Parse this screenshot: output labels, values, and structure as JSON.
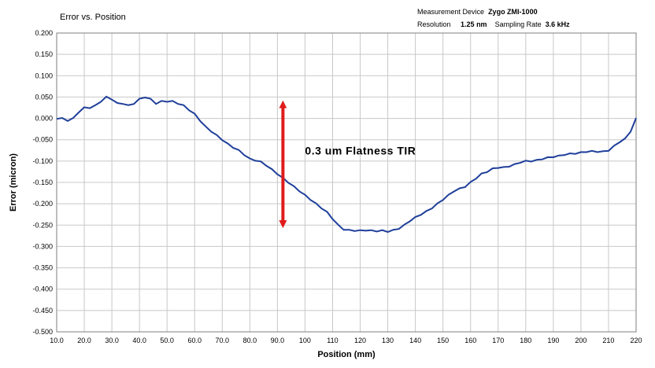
{
  "chart_data": {
    "type": "line",
    "title": "Error vs. Position",
    "xlabel": "Position (mm)",
    "ylabel": "Error (micron)",
    "xlim": [
      10,
      220
    ],
    "ylim": [
      -0.5,
      0.2
    ],
    "x_ticks": [
      "10.0",
      "20.0",
      "30.0",
      "40.0",
      "50.0",
      "60.0",
      "70.0",
      "80.0",
      "90.0",
      "100",
      "110",
      "120",
      "130",
      "140",
      "150",
      "160",
      "170",
      "180",
      "190",
      "200",
      "210",
      "220"
    ],
    "y_ticks": [
      "0.200",
      "0.150",
      "0.100",
      "0.050",
      "0.000",
      "-0.050",
      "-0.100",
      "-0.150",
      "-0.200",
      "-0.250",
      "-0.300",
      "-0.350",
      "-0.400",
      "-0.450",
      "-0.500"
    ],
    "grid": true,
    "series": [
      {
        "color": "#1f3f9a",
        "x": [
          10,
          12,
          14,
          16,
          18,
          20,
          22,
          24,
          26,
          28,
          30,
          32,
          34,
          36,
          38,
          40,
          42,
          44,
          46,
          48,
          50,
          52,
          54,
          56,
          58,
          60,
          62,
          64,
          66,
          68,
          70,
          72,
          74,
          76,
          78,
          80,
          82,
          84,
          86,
          88,
          90,
          92,
          94,
          96,
          98,
          100,
          102,
          104,
          106,
          108,
          110,
          112,
          114,
          116,
          118,
          120,
          122,
          124,
          126,
          128,
          130,
          132,
          134,
          136,
          138,
          140,
          142,
          144,
          146,
          148,
          150,
          152,
          154,
          156,
          158,
          160,
          162,
          164,
          166,
          168,
          170,
          172,
          174,
          176,
          178,
          180,
          182,
          184,
          186,
          188,
          190,
          192,
          194,
          196,
          198,
          200,
          202,
          204,
          206,
          208,
          210,
          212,
          214,
          216,
          218,
          220
        ],
        "y": [
          0.0,
          0.0,
          -0.005,
          0.0,
          0.015,
          0.025,
          0.025,
          0.03,
          0.04,
          0.05,
          0.045,
          0.035,
          0.035,
          0.03,
          0.035,
          0.045,
          0.05,
          0.045,
          0.035,
          0.04,
          0.04,
          0.04,
          0.035,
          0.03,
          0.02,
          0.01,
          -0.005,
          -0.02,
          -0.03,
          -0.04,
          -0.05,
          -0.06,
          -0.068,
          -0.075,
          -0.085,
          -0.095,
          -0.098,
          -0.102,
          -0.11,
          -0.12,
          -0.13,
          -0.14,
          -0.15,
          -0.16,
          -0.17,
          -0.18,
          -0.19,
          -0.2,
          -0.21,
          -0.22,
          -0.235,
          -0.25,
          -0.26,
          -0.262,
          -0.263,
          -0.263,
          -0.262,
          -0.263,
          -0.264,
          -0.263,
          -0.265,
          -0.262,
          -0.258,
          -0.25,
          -0.24,
          -0.232,
          -0.225,
          -0.218,
          -0.21,
          -0.2,
          -0.19,
          -0.18,
          -0.17,
          -0.165,
          -0.16,
          -0.15,
          -0.14,
          -0.13,
          -0.125,
          -0.118,
          -0.115,
          -0.115,
          -0.112,
          -0.108,
          -0.103,
          -0.1,
          -0.1,
          -0.098,
          -0.095,
          -0.092,
          -0.09,
          -0.088,
          -0.085,
          -0.083,
          -0.082,
          -0.08,
          -0.078,
          -0.077,
          -0.078,
          -0.078,
          -0.075,
          -0.065,
          -0.055,
          -0.048,
          -0.03,
          0.0
        ]
      }
    ],
    "annotation": "0.3 um Flatness TIR",
    "reference_lines_y": [
      0.055,
      -0.27
    ]
  },
  "header": {
    "device_label": "Measurement Device",
    "device_value": "Zygo ZMI-1000",
    "resolution_label": "Resolution",
    "resolution_value": "1.25 nm",
    "sampling_label": "Sampling Rate",
    "sampling_value": "3.6 kHz"
  },
  "colors": {
    "data_line": "#1f3f9a",
    "annotation": "#e01b1b",
    "grid": "#c8c8c8"
  }
}
